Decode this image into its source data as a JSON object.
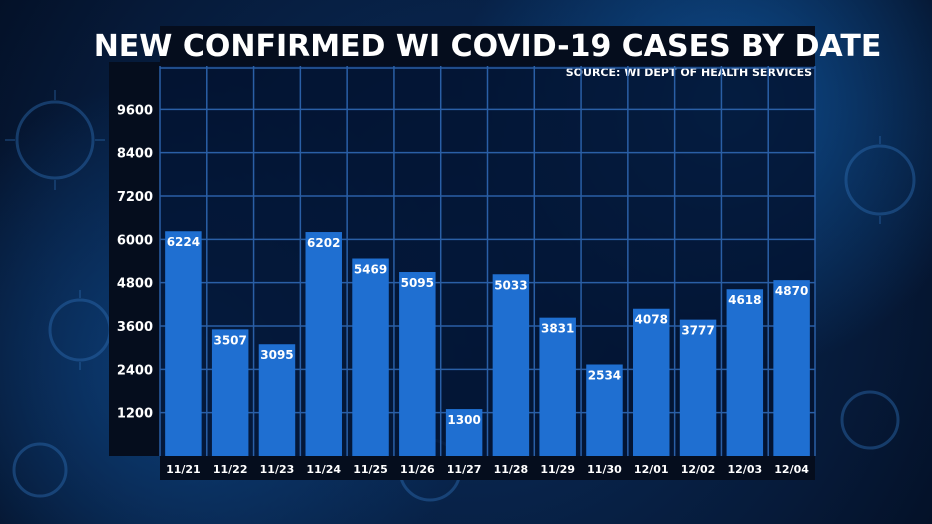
{
  "header": {
    "title": "NEW CONFIRMED WI COVID-19 CASES BY DATE",
    "source": "SOURCE: WI DEPT OF HEALTH SERVICES"
  },
  "chart_data": {
    "type": "bar",
    "title": "NEW CONFIRMED WI COVID-19 CASES BY DATE",
    "subtitle": "SOURCE: WI DEPT OF HEALTH SERVICES",
    "xlabel": "",
    "ylabel": "",
    "categories": [
      "11/21",
      "11/22",
      "11/23",
      "11/24",
      "11/25",
      "11/26",
      "11/27",
      "11/28",
      "11/29",
      "11/30",
      "12/01",
      "12/02",
      "12/03",
      "12/04"
    ],
    "values": [
      6224,
      3507,
      3095,
      6202,
      5469,
      5095,
      1300,
      5033,
      3831,
      2534,
      4078,
      3777,
      4618,
      4870
    ],
    "ylim": [
      0,
      10800
    ],
    "yticks": [
      1200,
      2400,
      3600,
      4800,
      6000,
      7200,
      8400,
      9600
    ],
    "grid": true,
    "colors": {
      "bar": "#1f6fd1",
      "grid": "#2a5fa6",
      "text": "#ffffff"
    }
  }
}
